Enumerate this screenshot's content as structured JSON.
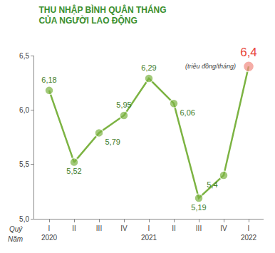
{
  "chart_data": {
    "type": "line",
    "title": "THU NHẬP BÌNH QUÂN THÁNG\nCỦA NGƯỜI LAO ĐỘNG",
    "unit": "(triệu đồng/tháng)",
    "x_label": "Quý",
    "group_label": "Năm",
    "categories": [
      "I",
      "II",
      "III",
      "IV",
      "I",
      "II",
      "III",
      "IV",
      "I"
    ],
    "groups": [
      "2020",
      null,
      null,
      null,
      "2021",
      null,
      null,
      null,
      "2022"
    ],
    "values": [
      6.18,
      5.52,
      5.79,
      5.95,
      6.29,
      6.06,
      5.19,
      5.4,
      6.4
    ],
    "value_labels": [
      "6,18",
      "5,52",
      "5,79",
      "5,95",
      "6,29",
      "6,06",
      "5,19",
      "5,4",
      "6,4"
    ],
    "data_labels": true,
    "color": "#7cb342",
    "colors": [
      "#7cb342",
      "#7cb342",
      "#7cb342",
      "#7cb342",
      "#7cb342",
      "#7cb342",
      "#7cb342",
      "#7cb342",
      "#f28b82"
    ],
    "marker": "circle",
    "line_style": "solid",
    "ylim": [
      5.0,
      6.5
    ],
    "yticks": [
      {
        "value": 5.0,
        "label": "5,0"
      },
      {
        "value": 5.5,
        "label": "5,5"
      },
      {
        "value": 6.0,
        "label": "6,0"
      },
      {
        "value": 6.5,
        "label": "6,5"
      }
    ],
    "grid": false
  }
}
